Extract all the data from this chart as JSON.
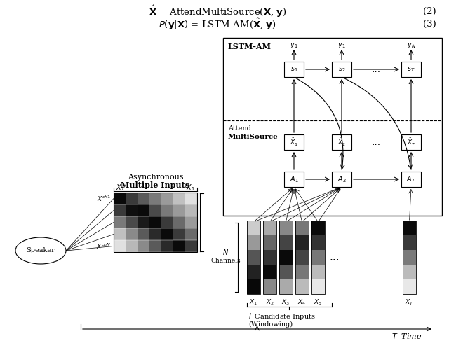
{
  "bg_color": "#ffffff",
  "eq2": "$\\hat{\\mathbf{X}}$ = AttendMultiSource($\\mathbf{X}$, $\\mathbf{y}$)",
  "eq3": "$P(\\mathbf{y}|\\mathbf{X})$ = LSTM-AM($\\hat{\\mathbf{X}}$, $\\mathbf{y}$)",
  "eq2_num": "(2)",
  "eq3_num": "(3)",
  "left_mat_row_colors": [
    [
      "#0a0a0a",
      "#3a3a3a",
      "#5a5a5a",
      "#7a7a7a",
      "#9a9a9a",
      "#c0c0c0",
      "#e0e0e0"
    ],
    [
      "#3a3a3a",
      "#0f0f0f",
      "#0a0a0a",
      "#4a4a4a",
      "#7a7a7a",
      "#9a9a9a",
      "#b8b8b8"
    ],
    [
      "#7a7a7a",
      "#4a4a4a",
      "#1a1a1a",
      "#0a0a0a",
      "#3a3a3a",
      "#6a6a6a",
      "#9a9a9a"
    ],
    [
      "#c0c0c0",
      "#8a8a8a",
      "#5a5a5a",
      "#2a2a2a",
      "#0a0a0a",
      "#3a3a3a",
      "#6a6a6a"
    ],
    [
      "#e0e0e0",
      "#b8b8b8",
      "#8a8a8a",
      "#5a5a5a",
      "#2a2a2a",
      "#0a0a0a",
      "#3a3a3a"
    ]
  ],
  "col_colors_x1": [
    "#cccccc",
    "#999999",
    "#555555",
    "#222222",
    "#080808"
  ],
  "col_colors_x2": [
    "#aaaaaa",
    "#666666",
    "#333333",
    "#0a0a0a",
    "#888888"
  ],
  "col_colors_x3": [
    "#888888",
    "#444444",
    "#0a0a0a",
    "#555555",
    "#aaaaaa"
  ],
  "col_colors_x4": [
    "#777777",
    "#222222",
    "#444444",
    "#777777",
    "#bbbbbb"
  ],
  "col_colors_x5": [
    "#0a0a0a",
    "#333333",
    "#777777",
    "#bbbbbb",
    "#e8e8e8"
  ],
  "col_colors_xt": [
    "#0a0a0a",
    "#3a3a3a",
    "#7a7a7a",
    "#bbbbbb",
    "#e8e8e8"
  ]
}
